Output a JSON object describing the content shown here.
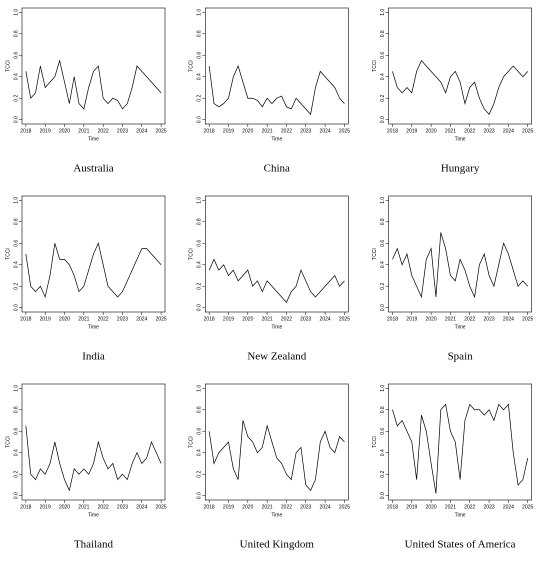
{
  "chart_data": [
    {
      "type": "line",
      "caption": "Australia",
      "xlabel": "Time",
      "ylabel": "TCCI",
      "color": "#000000",
      "x": [
        2018,
        2018.25,
        2018.5,
        2018.75,
        2019,
        2019.25,
        2019.5,
        2019.75,
        2020,
        2020.25,
        2020.5,
        2020.75,
        2021,
        2021.25,
        2021.5,
        2021.75,
        2022,
        2022.25,
        2022.5,
        2022.75,
        2023,
        2023.25,
        2023.5,
        2023.75,
        2024,
        2024.25,
        2024.5,
        2024.75,
        2025
      ],
      "values": [
        0.45,
        0.2,
        0.25,
        0.5,
        0.3,
        0.35,
        0.4,
        0.55,
        0.35,
        0.15,
        0.4,
        0.15,
        0.1,
        0.3,
        0.45,
        0.5,
        0.2,
        0.15,
        0.2,
        0.18,
        0.1,
        0.15,
        0.3,
        0.5,
        0.45,
        0.4,
        0.35,
        0.3,
        0.25
      ],
      "xlim": [
        2017.8,
        2025.2
      ],
      "xticks": [
        2018,
        2019,
        2020,
        2021,
        2022,
        2023,
        2024,
        2025
      ],
      "ylim": [
        -0.04,
        1.04
      ],
      "yticks": [
        {
          "value": 0,
          "label": "0.0"
        },
        0.2,
        0.4,
        0.6,
        0.8,
        {
          "value": 1,
          "label": "1.0"
        }
      ]
    },
    {
      "type": "line",
      "caption": "China",
      "xlabel": "Time",
      "ylabel": "TCCI",
      "color": "#000000",
      "x": [
        2018,
        2018.25,
        2018.5,
        2018.75,
        2019,
        2019.25,
        2019.5,
        2019.75,
        2020,
        2020.25,
        2020.5,
        2020.75,
        2021,
        2021.25,
        2021.5,
        2021.75,
        2022,
        2022.25,
        2022.5,
        2022.75,
        2023,
        2023.25,
        2023.5,
        2023.75,
        2024,
        2024.25,
        2024.5,
        2024.75,
        2025
      ],
      "values": [
        0.5,
        0.15,
        0.12,
        0.15,
        0.2,
        0.4,
        0.5,
        0.35,
        0.2,
        0.2,
        0.18,
        0.12,
        0.2,
        0.15,
        0.2,
        0.22,
        0.12,
        0.1,
        0.2,
        0.15,
        0.1,
        0.05,
        0.3,
        0.45,
        0.4,
        0.35,
        0.3,
        0.2,
        0.15
      ],
      "xlim": [
        2017.8,
        2025.2
      ],
      "xticks": [
        2018,
        2019,
        2020,
        2021,
        2022,
        2023,
        2024,
        2025
      ],
      "ylim": [
        -0.04,
        1.04
      ],
      "yticks": [
        {
          "value": 0,
          "label": "0.0"
        },
        0.2,
        0.4,
        0.6,
        0.8,
        {
          "value": 1,
          "label": "1.0"
        }
      ]
    },
    {
      "type": "line",
      "caption": "Hungary",
      "xlabel": "Time",
      "ylabel": "TCCI",
      "color": "#000000",
      "x": [
        2018,
        2018.25,
        2018.5,
        2018.75,
        2019,
        2019.25,
        2019.5,
        2019.75,
        2020,
        2020.25,
        2020.5,
        2020.75,
        2021,
        2021.25,
        2021.5,
        2021.75,
        2022,
        2022.25,
        2022.5,
        2022.75,
        2023,
        2023.25,
        2023.5,
        2023.75,
        2024,
        2024.25,
        2024.5,
        2024.75,
        2025
      ],
      "values": [
        0.45,
        0.3,
        0.25,
        0.3,
        0.25,
        0.45,
        0.55,
        0.5,
        0.45,
        0.4,
        0.35,
        0.25,
        0.4,
        0.45,
        0.35,
        0.15,
        0.3,
        0.35,
        0.2,
        0.1,
        0.05,
        0.15,
        0.3,
        0.4,
        0.45,
        0.5,
        0.45,
        0.4,
        0.45
      ],
      "xlim": [
        2017.8,
        2025.2
      ],
      "xticks": [
        2018,
        2019,
        2020,
        2021,
        2022,
        2023,
        2024,
        2025
      ],
      "ylim": [
        -0.04,
        1.04
      ],
      "yticks": [
        {
          "value": 0,
          "label": "0.0"
        },
        0.2,
        0.4,
        0.6,
        0.8,
        {
          "value": 1,
          "label": "1.0"
        }
      ]
    },
    {
      "type": "line",
      "caption": "India",
      "xlabel": "Time",
      "ylabel": "TCCI",
      "color": "#000000",
      "x": [
        2018,
        2018.25,
        2018.5,
        2018.75,
        2019,
        2019.25,
        2019.5,
        2019.75,
        2020,
        2020.25,
        2020.5,
        2020.75,
        2021,
        2021.25,
        2021.5,
        2021.75,
        2022,
        2022.25,
        2022.5,
        2022.75,
        2023,
        2023.25,
        2023.5,
        2023.75,
        2024,
        2024.25,
        2024.5,
        2024.75,
        2025
      ],
      "values": [
        0.5,
        0.2,
        0.15,
        0.2,
        0.1,
        0.3,
        0.6,
        0.45,
        0.45,
        0.4,
        0.3,
        0.15,
        0.2,
        0.35,
        0.5,
        0.6,
        0.4,
        0.2,
        0.15,
        0.1,
        0.15,
        0.25,
        0.35,
        0.45,
        0.55,
        0.55,
        0.5,
        0.45,
        0.4
      ],
      "xlim": [
        2017.8,
        2025.2
      ],
      "xticks": [
        2018,
        2019,
        2020,
        2021,
        2022,
        2023,
        2024,
        2025
      ],
      "ylim": [
        -0.04,
        1.04
      ],
      "yticks": [
        {
          "value": 0,
          "label": "0.0"
        },
        0.2,
        0.4,
        0.6,
        0.8,
        {
          "value": 1,
          "label": "1.0"
        }
      ]
    },
    {
      "type": "line",
      "caption": "New Zealand",
      "xlabel": "Time",
      "ylabel": "TCCI",
      "color": "#000000",
      "x": [
        2018,
        2018.25,
        2018.5,
        2018.75,
        2019,
        2019.25,
        2019.5,
        2019.75,
        2020,
        2020.25,
        2020.5,
        2020.75,
        2021,
        2021.25,
        2021.5,
        2021.75,
        2022,
        2022.25,
        2022.5,
        2022.75,
        2023,
        2023.25,
        2023.5,
        2023.75,
        2024,
        2024.25,
        2024.5,
        2024.75,
        2025
      ],
      "values": [
        0.35,
        0.45,
        0.35,
        0.4,
        0.3,
        0.35,
        0.25,
        0.3,
        0.35,
        0.2,
        0.25,
        0.15,
        0.25,
        0.2,
        0.15,
        0.1,
        0.05,
        0.15,
        0.2,
        0.35,
        0.25,
        0.15,
        0.1,
        0.15,
        0.2,
        0.25,
        0.3,
        0.2,
        0.25
      ],
      "xlim": [
        2017.8,
        2025.2
      ],
      "xticks": [
        2018,
        2019,
        2020,
        2021,
        2022,
        2023,
        2024,
        2025
      ],
      "ylim": [
        -0.04,
        1.04
      ],
      "yticks": [
        {
          "value": 0,
          "label": "0.0"
        },
        0.2,
        0.4,
        0.6,
        0.8,
        {
          "value": 1,
          "label": "1.0"
        }
      ]
    },
    {
      "type": "line",
      "caption": "Spain",
      "xlabel": "Time",
      "ylabel": "TCCI",
      "color": "#000000",
      "x": [
        2018,
        2018.25,
        2018.5,
        2018.75,
        2019,
        2019.25,
        2019.5,
        2019.75,
        2020,
        2020.25,
        2020.5,
        2020.75,
        2021,
        2021.25,
        2021.5,
        2021.75,
        2022,
        2022.25,
        2022.5,
        2022.75,
        2023,
        2023.25,
        2023.5,
        2023.75,
        2024,
        2024.25,
        2024.5,
        2024.75,
        2025
      ],
      "values": [
        0.45,
        0.55,
        0.4,
        0.5,
        0.3,
        0.2,
        0.1,
        0.45,
        0.55,
        0.1,
        0.7,
        0.55,
        0.3,
        0.25,
        0.45,
        0.35,
        0.2,
        0.1,
        0.4,
        0.5,
        0.3,
        0.2,
        0.4,
        0.6,
        0.5,
        0.35,
        0.2,
        0.25,
        0.2
      ],
      "xlim": [
        2017.8,
        2025.2
      ],
      "xticks": [
        2018,
        2019,
        2020,
        2021,
        2022,
        2023,
        2024,
        2025
      ],
      "ylim": [
        -0.04,
        1.04
      ],
      "yticks": [
        {
          "value": 0,
          "label": "0.0"
        },
        0.2,
        0.4,
        0.6,
        0.8,
        {
          "value": 1,
          "label": "1.0"
        }
      ]
    },
    {
      "type": "line",
      "caption": "Thailand",
      "xlabel": "Time",
      "ylabel": "TCCI",
      "color": "#000000",
      "x": [
        2018,
        2018.25,
        2018.5,
        2018.75,
        2019,
        2019.25,
        2019.5,
        2019.75,
        2020,
        2020.25,
        2020.5,
        2020.75,
        2021,
        2021.25,
        2021.5,
        2021.75,
        2022,
        2022.25,
        2022.5,
        2022.75,
        2023,
        2023.25,
        2023.5,
        2023.75,
        2024,
        2024.25,
        2024.5,
        2024.75,
        2025
      ],
      "values": [
        0.65,
        0.2,
        0.15,
        0.25,
        0.2,
        0.3,
        0.5,
        0.3,
        0.15,
        0.05,
        0.25,
        0.2,
        0.25,
        0.2,
        0.3,
        0.5,
        0.35,
        0.25,
        0.3,
        0.15,
        0.2,
        0.15,
        0.3,
        0.4,
        0.3,
        0.35,
        0.5,
        0.4,
        0.3
      ],
      "xlim": [
        2017.8,
        2025.2
      ],
      "xticks": [
        2018,
        2019,
        2020,
        2021,
        2022,
        2023,
        2024,
        2025
      ],
      "ylim": [
        -0.04,
        1.04
      ],
      "yticks": [
        {
          "value": 0,
          "label": "0.0"
        },
        0.2,
        0.4,
        0.6,
        0.8,
        {
          "value": 1,
          "label": "1.0"
        }
      ]
    },
    {
      "type": "line",
      "caption": "United Kingdom",
      "xlabel": "Time",
      "ylabel": "TCCI",
      "color": "#000000",
      "x": [
        2018,
        2018.25,
        2018.5,
        2018.75,
        2019,
        2019.25,
        2019.5,
        2019.75,
        2020,
        2020.25,
        2020.5,
        2020.75,
        2021,
        2021.25,
        2021.5,
        2021.75,
        2022,
        2022.25,
        2022.5,
        2022.75,
        2023,
        2023.25,
        2023.5,
        2023.75,
        2024,
        2024.25,
        2024.5,
        2024.75,
        2025
      ],
      "values": [
        0.6,
        0.3,
        0.4,
        0.45,
        0.5,
        0.25,
        0.15,
        0.7,
        0.55,
        0.5,
        0.4,
        0.45,
        0.65,
        0.5,
        0.35,
        0.3,
        0.2,
        0.15,
        0.4,
        0.45,
        0.1,
        0.05,
        0.15,
        0.5,
        0.6,
        0.45,
        0.4,
        0.55,
        0.5
      ],
      "xlim": [
        2017.8,
        2025.2
      ],
      "xticks": [
        2018,
        2019,
        2020,
        2021,
        2022,
        2023,
        2024,
        2025
      ],
      "ylim": [
        -0.04,
        1.04
      ],
      "yticks": [
        {
          "value": 0,
          "label": "0.0"
        },
        0.2,
        0.4,
        0.6,
        0.8,
        {
          "value": 1,
          "label": "1.0"
        }
      ]
    },
    {
      "type": "line",
      "caption": "United States of America",
      "xlabel": "Time",
      "ylabel": "TCCI",
      "color": "#000000",
      "x": [
        2018,
        2018.25,
        2018.5,
        2018.75,
        2019,
        2019.25,
        2019.5,
        2019.75,
        2020,
        2020.25,
        2020.5,
        2020.75,
        2021,
        2021.25,
        2021.5,
        2021.75,
        2022,
        2022.25,
        2022.5,
        2022.75,
        2023,
        2023.25,
        2023.5,
        2023.75,
        2024,
        2024.25,
        2024.5,
        2024.75,
        2025
      ],
      "values": [
        0.8,
        0.65,
        0.7,
        0.6,
        0.5,
        0.15,
        0.75,
        0.6,
        0.3,
        0.02,
        0.8,
        0.85,
        0.6,
        0.5,
        0.15,
        0.7,
        0.85,
        0.8,
        0.8,
        0.75,
        0.8,
        0.7,
        0.85,
        0.8,
        0.85,
        0.4,
        0.1,
        0.15,
        0.35
      ],
      "xlim": [
        2017.8,
        2025.2
      ],
      "xticks": [
        2018,
        2019,
        2020,
        2021,
        2022,
        2023,
        2024,
        2025
      ],
      "ylim": [
        -0.04,
        1.04
      ],
      "yticks": [
        {
          "value": 0,
          "label": "0.0"
        },
        0.2,
        0.4,
        0.6,
        0.8,
        {
          "value": 1,
          "label": "1.0"
        }
      ]
    }
  ]
}
